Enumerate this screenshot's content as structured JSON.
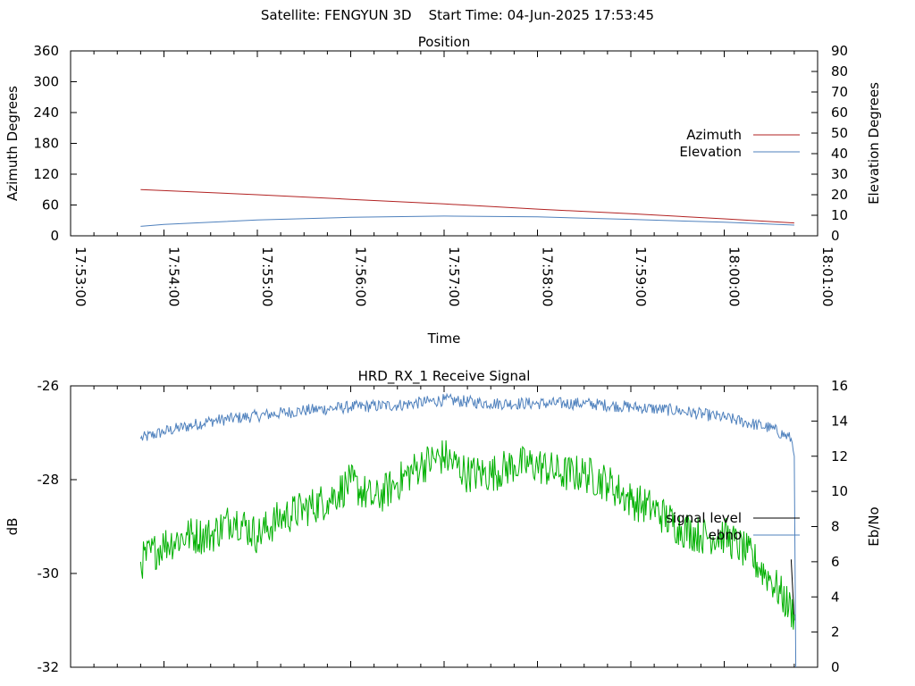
{
  "header": {
    "title": "Satellite: FENGYUN 3D    Start Time: 04-Jun-2025 17:53:45"
  },
  "chart_data": [
    {
      "type": "line",
      "title": "Position",
      "xlabel": "Time",
      "ylabel": "Azimuth Degrees",
      "y2label": "Elevation Degrees",
      "x_ticks": [
        "17:53:00",
        "17:54:00",
        "17:55:00",
        "17:56:00",
        "17:57:00",
        "17:58:00",
        "17:59:00",
        "18:00:00",
        "18:01:00"
      ],
      "xlim": [
        "17:53:00",
        "18:01:00"
      ],
      "ylim": [
        0,
        360
      ],
      "y_ticks": [
        0,
        60,
        120,
        180,
        240,
        300,
        360
      ],
      "y2lim": [
        0,
        90
      ],
      "y2_ticks": [
        0,
        10,
        20,
        30,
        40,
        50,
        60,
        70,
        80,
        90
      ],
      "grid": false,
      "legend_position": "right",
      "series": [
        {
          "name": "Azimuth",
          "axis": "y",
          "color": "#b22222",
          "x": [
            "17:53:45",
            "17:54:00",
            "17:55:00",
            "17:56:00",
            "17:57:00",
            "17:58:00",
            "17:59:00",
            "18:00:00",
            "18:00:45"
          ],
          "values": [
            90,
            88,
            80,
            71,
            62,
            52,
            43,
            33,
            25
          ]
        },
        {
          "name": "Elevation",
          "axis": "y2",
          "color": "#4f81bd",
          "x": [
            "17:53:45",
            "17:54:00",
            "17:55:00",
            "17:56:00",
            "17:57:00",
            "17:58:00",
            "17:59:00",
            "18:00:00",
            "18:00:45"
          ],
          "values": [
            4.6,
            5.5,
            7.7,
            9.0,
            9.6,
            9.2,
            8.0,
            6.6,
            5.2
          ]
        }
      ]
    },
    {
      "type": "line",
      "title": "HRD_RX_1 Receive Signal",
      "xlabel": "",
      "ylabel": "dB",
      "y2label": "Eb/No",
      "xlim": [
        "17:53:00",
        "18:01:00"
      ],
      "ylim": [
        -32,
        -26
      ],
      "y_ticks": [
        -32,
        -30,
        -28,
        -26
      ],
      "y2lim": [
        0,
        16
      ],
      "y2_ticks": [
        0,
        2,
        4,
        6,
        8,
        10,
        12,
        14,
        16
      ],
      "grid": false,
      "legend_position": "right",
      "series": [
        {
          "name": "signal level",
          "axis": "y",
          "color": "#000000",
          "x": [
            "18:00:43",
            "18:00:45"
          ],
          "values": [
            -29.7,
            -31.0
          ]
        },
        {
          "name": "ebno",
          "axis": "y2",
          "color": "#4f81bd",
          "x": [
            "17:53:45",
            "17:54:00",
            "17:54:30",
            "17:55:00",
            "17:55:30",
            "17:56:00",
            "17:56:30",
            "17:57:00",
            "17:57:30",
            "17:58:00",
            "17:58:30",
            "17:59:00",
            "17:59:30",
            "18:00:00",
            "18:00:30",
            "18:00:43",
            "18:00:45",
            "18:00:46"
          ],
          "values": [
            13.0,
            13.4,
            14.0,
            14.3,
            14.6,
            14.8,
            14.9,
            15.2,
            15.0,
            15.0,
            15.0,
            14.8,
            14.6,
            14.2,
            13.6,
            13.0,
            12.0,
            0
          ]
        },
        {
          "name": "",
          "axis": "y2",
          "color": "#00b000",
          "x": [
            "17:53:45",
            "17:54:00",
            "17:54:15",
            "17:54:30",
            "17:54:45",
            "17:55:00",
            "17:55:15",
            "17:55:30",
            "17:55:45",
            "17:56:00",
            "17:56:15",
            "17:56:30",
            "17:56:45",
            "17:57:00",
            "17:57:15",
            "17:57:30",
            "17:57:45",
            "17:58:00",
            "17:58:15",
            "17:58:30",
            "17:58:45",
            "17:59:00",
            "17:59:15",
            "17:59:30",
            "17:59:45",
            "18:00:00",
            "18:00:15",
            "18:00:30",
            "18:00:45"
          ],
          "values": [
            6.0,
            7.0,
            7.5,
            7.5,
            8.5,
            7.5,
            8.5,
            9.0,
            9.5,
            10.5,
            9.5,
            10.5,
            11.5,
            12.0,
            11.0,
            11.0,
            11.5,
            11.5,
            11.0,
            11.0,
            10.5,
            9.5,
            9.0,
            8.0,
            7.5,
            7.5,
            6.5,
            5.0,
            3.0
          ]
        }
      ]
    }
  ]
}
